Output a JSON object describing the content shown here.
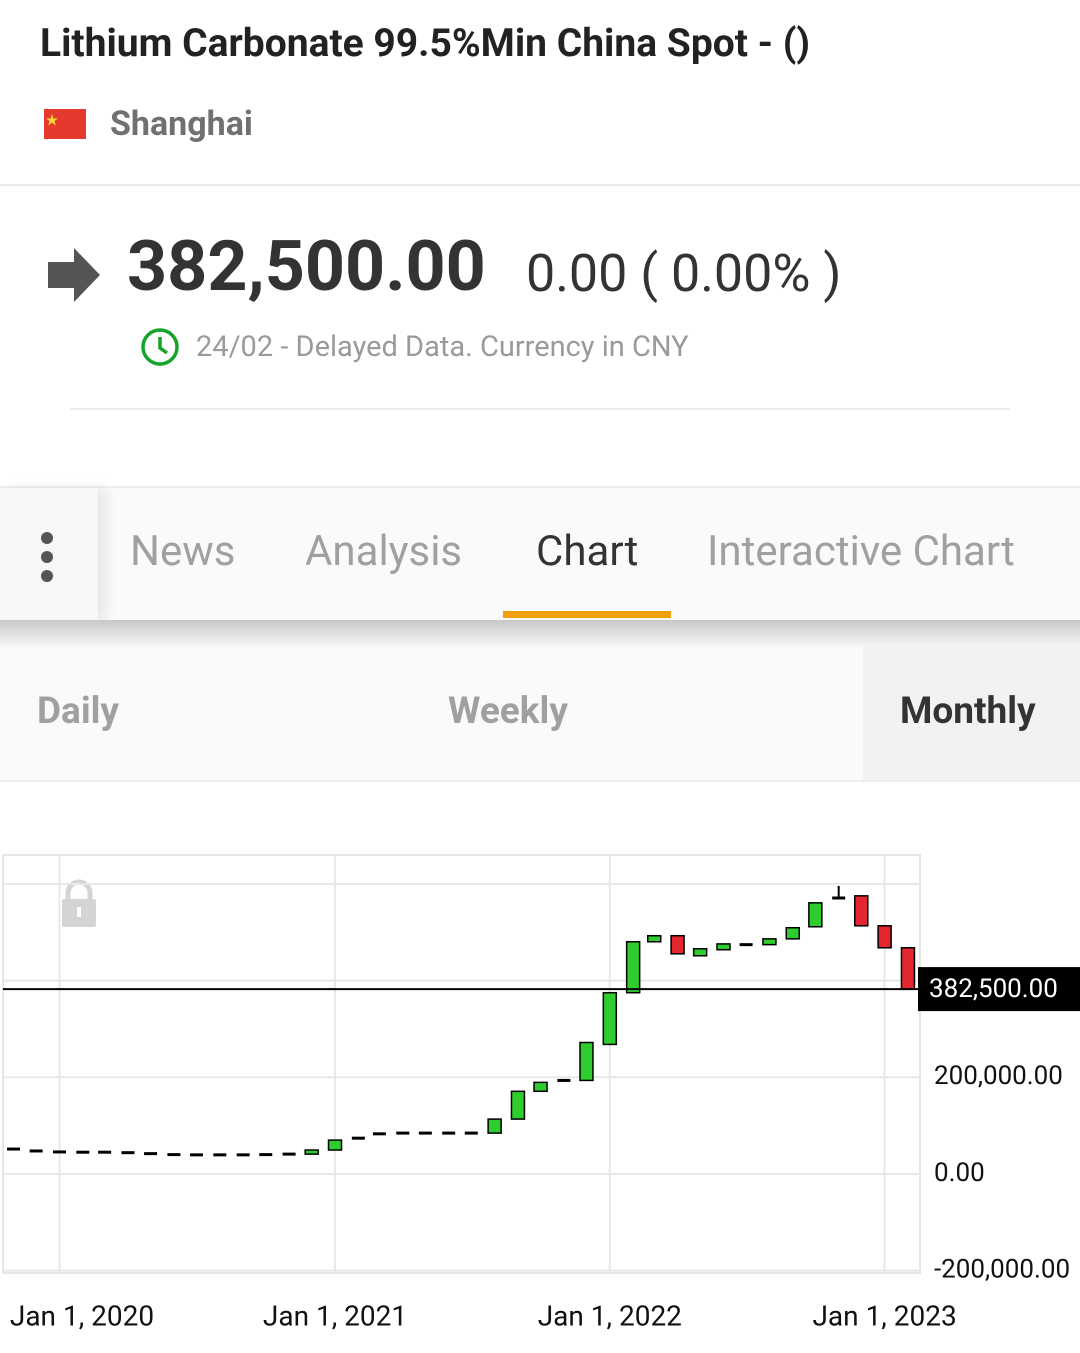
{
  "header": {
    "title": "Lithium Carbonate 99.5%Min China Spot - ()",
    "exchange": "Shanghai"
  },
  "quote": {
    "price": "382,500.00",
    "change": "0.00 ( 0.00% )",
    "note": "24/02 - Delayed Data. Currency in CNY"
  },
  "tabs": [
    "News",
    "Analysis",
    "Chart",
    "Interactive Chart"
  ],
  "active_tab": 2,
  "periods": [
    "Daily",
    "Weekly",
    "Monthly"
  ],
  "active_period": 2,
  "chart_data": {
    "type": "candlestick",
    "x": [
      "2019-11-01",
      "2019-12-01",
      "2020-01-01",
      "2020-02-01",
      "2020-03-01",
      "2020-04-01",
      "2020-05-01",
      "2020-06-01",
      "2020-07-01",
      "2020-08-01",
      "2020-09-01",
      "2020-10-01",
      "2020-11-01",
      "2020-12-01",
      "2021-01-01",
      "2021-02-01",
      "2021-03-01",
      "2021-04-01",
      "2021-05-01",
      "2021-06-01",
      "2021-07-01",
      "2021-08-01",
      "2021-09-01",
      "2021-10-01",
      "2021-11-01",
      "2021-12-01",
      "2022-01-01",
      "2022-02-01",
      "2022-03-01",
      "2022-04-01",
      "2022-05-01",
      "2022-06-01",
      "2022-07-01",
      "2022-08-01",
      "2022-09-01",
      "2022-10-01",
      "2022-11-01",
      "2022-12-01",
      "2023-01-01",
      "2023-02-01"
    ],
    "open": [
      51500,
      47500,
      45500,
      45000,
      45000,
      44000,
      42000,
      40000,
      39500,
      39500,
      39500,
      40000,
      41000,
      41000,
      49500,
      74000,
      83000,
      84500,
      84500,
      84500,
      84500,
      84500,
      113500,
      171000,
      193500,
      193500,
      268000,
      375000,
      480500,
      493000,
      451500,
      464000,
      474500,
      474500,
      486500,
      511500,
      571000,
      575500,
      513500,
      468000
    ],
    "high": [
      51500,
      47500,
      45500,
      45000,
      45000,
      44000,
      42000,
      40000,
      39500,
      39500,
      39500,
      40000,
      41000,
      49500,
      70000,
      74000,
      83000,
      84500,
      84500,
      84500,
      84500,
      113500,
      171000,
      189500,
      193500,
      272000,
      375000,
      480500,
      493000,
      493000,
      466000,
      476000,
      474500,
      486500,
      509500,
      561000,
      596000,
      575500,
      513500,
      468000
    ],
    "low": [
      51500,
      47500,
      45500,
      45000,
      45000,
      44000,
      42000,
      40000,
      39500,
      39500,
      39500,
      40000,
      41000,
      41000,
      49500,
      74000,
      83000,
      84500,
      84500,
      84500,
      84500,
      84500,
      113500,
      171000,
      193500,
      193500,
      268000,
      375000,
      480500,
      455500,
      451500,
      464000,
      474500,
      474500,
      486500,
      511500,
      571000,
      513500,
      468000,
      382500
    ],
    "close": [
      51500,
      47500,
      45500,
      45000,
      45000,
      44000,
      42000,
      40000,
      39500,
      39500,
      39500,
      40000,
      41000,
      49500,
      70000,
      74000,
      83000,
      84500,
      84500,
      84500,
      84500,
      113500,
      171000,
      189500,
      193500,
      272000,
      375000,
      480500,
      493000,
      455500,
      466000,
      476000,
      474500,
      486500,
      509500,
      561000,
      571000,
      513500,
      468000,
      382500
    ],
    "up_color": "#2ecc2e",
    "down_color": "#e3262f",
    "flat_color": "#000000",
    "xlim": [
      "2019-10-18",
      "2023-02-17"
    ],
    "xticks": [
      {
        "value": "2020-01-01",
        "label": "Jan 1, 2020"
      },
      {
        "value": "2021-01-01",
        "label": "Jan 1, 2021"
      },
      {
        "value": "2022-01-01",
        "label": "Jan 1, 2022"
      },
      {
        "value": "2023-01-01",
        "label": "Jan 1, 2023"
      }
    ],
    "ylim": [
      -205000,
      660000
    ],
    "yticks": [
      {
        "value": -200000,
        "label": "-200,000.00"
      },
      {
        "value": 0,
        "label": "0.00"
      },
      {
        "value": 200000,
        "label": "200,000.00"
      },
      {
        "value": 400000,
        "label": null
      },
      {
        "value": 600000,
        "label": null
      }
    ],
    "last_price": {
      "value": 382500,
      "label": "382,500.00"
    },
    "grid": true
  }
}
